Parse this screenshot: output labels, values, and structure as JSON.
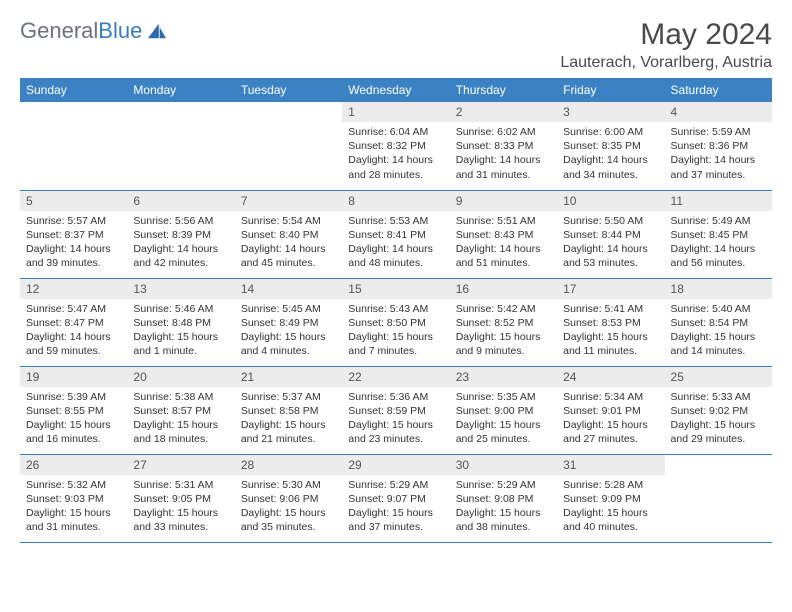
{
  "brand": {
    "part1": "General",
    "part2": "Blue"
  },
  "title": "May 2024",
  "location": "Lauterach, Vorarlberg, Austria",
  "colors": {
    "header_bg": "#3b82c4",
    "header_text": "#ffffff",
    "daynum_bg": "#ececec",
    "border": "#3b7bbf",
    "text": "#333333"
  },
  "weekdays": [
    "Sunday",
    "Monday",
    "Tuesday",
    "Wednesday",
    "Thursday",
    "Friday",
    "Saturday"
  ],
  "weeks": [
    [
      null,
      null,
      null,
      {
        "n": "1",
        "sr": "6:04 AM",
        "ss": "8:32 PM",
        "dl": "14 hours and 28 minutes."
      },
      {
        "n": "2",
        "sr": "6:02 AM",
        "ss": "8:33 PM",
        "dl": "14 hours and 31 minutes."
      },
      {
        "n": "3",
        "sr": "6:00 AM",
        "ss": "8:35 PM",
        "dl": "14 hours and 34 minutes."
      },
      {
        "n": "4",
        "sr": "5:59 AM",
        "ss": "8:36 PM",
        "dl": "14 hours and 37 minutes."
      }
    ],
    [
      {
        "n": "5",
        "sr": "5:57 AM",
        "ss": "8:37 PM",
        "dl": "14 hours and 39 minutes."
      },
      {
        "n": "6",
        "sr": "5:56 AM",
        "ss": "8:39 PM",
        "dl": "14 hours and 42 minutes."
      },
      {
        "n": "7",
        "sr": "5:54 AM",
        "ss": "8:40 PM",
        "dl": "14 hours and 45 minutes."
      },
      {
        "n": "8",
        "sr": "5:53 AM",
        "ss": "8:41 PM",
        "dl": "14 hours and 48 minutes."
      },
      {
        "n": "9",
        "sr": "5:51 AM",
        "ss": "8:43 PM",
        "dl": "14 hours and 51 minutes."
      },
      {
        "n": "10",
        "sr": "5:50 AM",
        "ss": "8:44 PM",
        "dl": "14 hours and 53 minutes."
      },
      {
        "n": "11",
        "sr": "5:49 AM",
        "ss": "8:45 PM",
        "dl": "14 hours and 56 minutes."
      }
    ],
    [
      {
        "n": "12",
        "sr": "5:47 AM",
        "ss": "8:47 PM",
        "dl": "14 hours and 59 minutes."
      },
      {
        "n": "13",
        "sr": "5:46 AM",
        "ss": "8:48 PM",
        "dl": "15 hours and 1 minute."
      },
      {
        "n": "14",
        "sr": "5:45 AM",
        "ss": "8:49 PM",
        "dl": "15 hours and 4 minutes."
      },
      {
        "n": "15",
        "sr": "5:43 AM",
        "ss": "8:50 PM",
        "dl": "15 hours and 7 minutes."
      },
      {
        "n": "16",
        "sr": "5:42 AM",
        "ss": "8:52 PM",
        "dl": "15 hours and 9 minutes."
      },
      {
        "n": "17",
        "sr": "5:41 AM",
        "ss": "8:53 PM",
        "dl": "15 hours and 11 minutes."
      },
      {
        "n": "18",
        "sr": "5:40 AM",
        "ss": "8:54 PM",
        "dl": "15 hours and 14 minutes."
      }
    ],
    [
      {
        "n": "19",
        "sr": "5:39 AM",
        "ss": "8:55 PM",
        "dl": "15 hours and 16 minutes."
      },
      {
        "n": "20",
        "sr": "5:38 AM",
        "ss": "8:57 PM",
        "dl": "15 hours and 18 minutes."
      },
      {
        "n": "21",
        "sr": "5:37 AM",
        "ss": "8:58 PM",
        "dl": "15 hours and 21 minutes."
      },
      {
        "n": "22",
        "sr": "5:36 AM",
        "ss": "8:59 PM",
        "dl": "15 hours and 23 minutes."
      },
      {
        "n": "23",
        "sr": "5:35 AM",
        "ss": "9:00 PM",
        "dl": "15 hours and 25 minutes."
      },
      {
        "n": "24",
        "sr": "5:34 AM",
        "ss": "9:01 PM",
        "dl": "15 hours and 27 minutes."
      },
      {
        "n": "25",
        "sr": "5:33 AM",
        "ss": "9:02 PM",
        "dl": "15 hours and 29 minutes."
      }
    ],
    [
      {
        "n": "26",
        "sr": "5:32 AM",
        "ss": "9:03 PM",
        "dl": "15 hours and 31 minutes."
      },
      {
        "n": "27",
        "sr": "5:31 AM",
        "ss": "9:05 PM",
        "dl": "15 hours and 33 minutes."
      },
      {
        "n": "28",
        "sr": "5:30 AM",
        "ss": "9:06 PM",
        "dl": "15 hours and 35 minutes."
      },
      {
        "n": "29",
        "sr": "5:29 AM",
        "ss": "9:07 PM",
        "dl": "15 hours and 37 minutes."
      },
      {
        "n": "30",
        "sr": "5:29 AM",
        "ss": "9:08 PM",
        "dl": "15 hours and 38 minutes."
      },
      {
        "n": "31",
        "sr": "5:28 AM",
        "ss": "9:09 PM",
        "dl": "15 hours and 40 minutes."
      },
      null
    ]
  ],
  "labels": {
    "sunrise": "Sunrise: ",
    "sunset": "Sunset: ",
    "daylight": "Daylight: "
  }
}
